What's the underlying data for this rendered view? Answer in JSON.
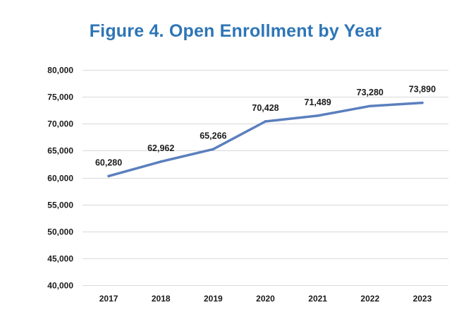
{
  "chart_data": {
    "type": "line",
    "title": "Figure 4. Open Enrollment by Year",
    "xlabel": "",
    "ylabel": "",
    "categories": [
      "2017",
      "2018",
      "2019",
      "2020",
      "2021",
      "2022",
      "2023"
    ],
    "series": [
      {
        "name": "Open Enrollment",
        "values": [
          60280,
          62962,
          65266,
          70428,
          71489,
          73280,
          73890
        ],
        "labels": [
          "60,280",
          "62,962",
          "65,266",
          "70,428",
          "71,489",
          "73,280",
          "73,890"
        ],
        "color": "#5b7fbd"
      }
    ],
    "ylim": [
      40000,
      80000
    ],
    "ytick_step": 5000,
    "yticks": [
      "40,000",
      "45,000",
      "50,000",
      "55,000",
      "60,000",
      "65,000",
      "70,000",
      "75,000",
      "80,000"
    ],
    "grid": true,
    "legend": "none"
  }
}
